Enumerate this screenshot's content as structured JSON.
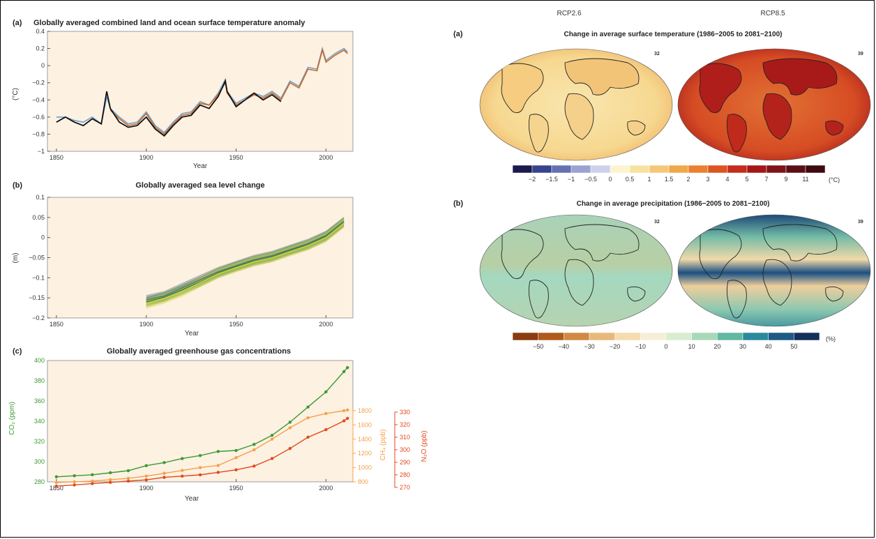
{
  "colors": {
    "plot_bg": "#fdf1e2",
    "obs_black": "#111111",
    "obs_orange": "#c8682a",
    "obs_blue": "#6ea0c8",
    "co2": "#3a9a34",
    "ch4": "#f5a04a",
    "n2o": "#e04a1c",
    "sea_grey": "#5f6f7a",
    "sea_green": "#2e8a3a",
    "sea_yellow": "#d6d23a"
  },
  "left": {
    "a_label": "(a)",
    "b_label": "(b)",
    "c_label": "(c)"
  },
  "right": {
    "rcp26": "RCP2.6",
    "rcp85": "RCP8.5",
    "a_label": "(a)",
    "b_label": "(b)",
    "temp_title": "Change in average surface temperature (1986−2005 to 2081−2100)",
    "precip_title": "Change in average precipitation (1986−2005 to 2081−2100)",
    "temp_model_count_26": "32",
    "temp_model_count_85": "39",
    "precip_model_count_26": "32",
    "precip_model_count_85": "39",
    "temp_unit": "(°C)",
    "precip_unit": "(%)",
    "temp_scale_labels": [
      "−2",
      "−1.5",
      "−1",
      "−0.5",
      "0",
      "0.5",
      "1",
      "1.5",
      "2",
      "3",
      "4",
      "5",
      "7",
      "9",
      "11"
    ],
    "temp_scale_colors": [
      "#1b1a4d",
      "#36448e",
      "#6670b3",
      "#9aa2d2",
      "#cdd1ea",
      "#fbf4cf",
      "#f7e2a0",
      "#f4c878",
      "#f0a848",
      "#ea8030",
      "#dc5422",
      "#c42c1c",
      "#a31818",
      "#7e1418",
      "#5c0e16",
      "#3e0a10"
    ],
    "precip_scale_labels": [
      "−50",
      "−40",
      "−30",
      "−20",
      "−10",
      "0",
      "10",
      "20",
      "30",
      "40",
      "50"
    ],
    "precip_scale_colors": [
      "#8a3c10",
      "#b05a1e",
      "#d08a44",
      "#e8b87a",
      "#f4dcae",
      "#f6eed6",
      "#d8ecd0",
      "#a8d8b8",
      "#62b8a0",
      "#2a8a9c",
      "#1e5a86",
      "#13305a"
    ]
  },
  "chart_data": [
    {
      "type": "line",
      "title": "Globally averaged combined land and ocean surface temperature anomaly",
      "xlabel": "Year",
      "ylabel": "(°C)",
      "xlim": [
        1845,
        2015
      ],
      "ylim": [
        -1,
        0.4
      ],
      "xticks": [
        1850,
        1900,
        1950,
        2000
      ],
      "yticks": [
        -1,
        -0.8,
        -0.6,
        -0.4,
        -0.2,
        0,
        0.2,
        0.4
      ],
      "grid": false,
      "x": [
        1850,
        1855,
        1860,
        1865,
        1870,
        1875,
        1878,
        1880,
        1885,
        1890,
        1895,
        1900,
        1905,
        1910,
        1915,
        1920,
        1925,
        1930,
        1935,
        1940,
        1944,
        1945,
        1950,
        1955,
        1960,
        1965,
        1970,
        1975,
        1980,
        1985,
        1990,
        1995,
        1998,
        2000,
        2005,
        2010,
        2012
      ],
      "series": [
        {
          "values": [
            -0.66,
            -0.6,
            -0.66,
            -0.7,
            -0.62,
            -0.68,
            -0.3,
            -0.5,
            -0.66,
            -0.72,
            -0.7,
            -0.6,
            -0.74,
            -0.82,
            -0.7,
            -0.6,
            -0.58,
            -0.46,
            -0.5,
            -0.36,
            -0.18,
            -0.3,
            -0.48,
            -0.4,
            -0.32,
            -0.4,
            -0.34,
            -0.42,
            -0.22,
            -0.28,
            -0.04,
            -0.08,
            0.2,
            0.02,
            0.12,
            0.2,
            0.16
          ]
        },
        {
          "values": [
            -0.62,
            -0.62,
            -0.66,
            -0.68,
            -0.6,
            -0.7,
            -0.4,
            -0.52,
            -0.62,
            -0.7,
            -0.68,
            -0.56,
            -0.72,
            -0.8,
            -0.68,
            -0.58,
            -0.56,
            -0.44,
            -0.46,
            -0.34,
            -0.2,
            -0.32,
            -0.46,
            -0.4,
            -0.34,
            -0.38,
            -0.32,
            -0.4,
            -0.2,
            -0.26,
            -0.04,
            -0.06,
            0.18,
            0.04,
            0.12,
            0.18,
            0.14
          ]
        },
        {
          "values": [
            -0.6,
            -0.6,
            -0.64,
            -0.66,
            -0.6,
            -0.68,
            -0.36,
            -0.5,
            -0.6,
            -0.68,
            -0.66,
            -0.54,
            -0.7,
            -0.78,
            -0.66,
            -0.56,
            -0.54,
            -0.42,
            -0.46,
            -0.32,
            -0.16,
            -0.3,
            -0.44,
            -0.38,
            -0.32,
            -0.36,
            -0.3,
            -0.38,
            -0.18,
            -0.24,
            -0.02,
            -0.04,
            0.2,
            0.06,
            0.14,
            0.2,
            0.16
          ]
        }
      ]
    },
    {
      "type": "area",
      "title": "Globally averaged sea level change",
      "xlabel": "Year",
      "ylabel": "(m)",
      "xlim": [
        1845,
        2015
      ],
      "ylim": [
        -0.2,
        0.1
      ],
      "xticks": [
        1850,
        1900,
        1950,
        2000
      ],
      "yticks": [
        -0.2,
        -0.15,
        -0.1,
        -0.05,
        0,
        0.05,
        0.1
      ],
      "grid": false,
      "x": [
        1900,
        1910,
        1920,
        1930,
        1940,
        1950,
        1960,
        1970,
        1980,
        1990,
        2000,
        2010
      ],
      "series": [
        {
          "values": [
            -0.155,
            -0.145,
            -0.125,
            -0.105,
            -0.085,
            -0.07,
            -0.055,
            -0.045,
            -0.03,
            -0.015,
            0.005,
            0.04
          ]
        },
        {
          "values": [
            -0.16,
            -0.148,
            -0.13,
            -0.11,
            -0.088,
            -0.072,
            -0.058,
            -0.048,
            -0.032,
            -0.018,
            0.003,
            0.038
          ]
        },
        {
          "values": [
            -0.165,
            -0.152,
            -0.135,
            -0.112,
            -0.09,
            -0.075,
            -0.06,
            -0.05,
            -0.035,
            -0.02,
            0.0,
            0.036
          ]
        }
      ]
    },
    {
      "type": "scatter",
      "title": "Globally averaged greenhouse gas concentrations",
      "xlabel": "Year",
      "xlim": [
        1845,
        2015
      ],
      "xticks": [
        1850,
        1900,
        1950,
        2000
      ],
      "grid": false,
      "axes": [
        {
          "label": "CO₂ (ppm)",
          "range": [
            280,
            400
          ],
          "ticks": [
            280,
            300,
            320,
            340,
            360,
            380,
            400
          ]
        },
        {
          "label": "CH₄ (ppb)",
          "range": [
            800,
            1800
          ],
          "ticks": [
            800,
            1000,
            1200,
            1400,
            1600,
            1800
          ]
        },
        {
          "label": "N₂O (ppb)",
          "range": [
            270,
            330
          ],
          "ticks": [
            270,
            280,
            290,
            300,
            310,
            320,
            330
          ]
        }
      ],
      "series": [
        {
          "x": [
            1850,
            1860,
            1870,
            1880,
            1890,
            1900,
            1910,
            1920,
            1930,
            1940,
            1950,
            1960,
            1970,
            1980,
            1990,
            2000,
            2010,
            2012
          ],
          "values": [
            285,
            286,
            287,
            289,
            291,
            296,
            299,
            303,
            306,
            310,
            311,
            317,
            326,
            339,
            354,
            369,
            389,
            393
          ]
        },
        {
          "x": [
            1850,
            1860,
            1870,
            1880,
            1890,
            1900,
            1910,
            1920,
            1930,
            1940,
            1950,
            1960,
            1970,
            1980,
            1990,
            2000,
            2010,
            2012
          ],
          "values": [
            790,
            800,
            810,
            830,
            850,
            880,
            920,
            960,
            1000,
            1030,
            1140,
            1250,
            1400,
            1560,
            1700,
            1760,
            1800,
            1810
          ]
        },
        {
          "x": [
            1850,
            1860,
            1870,
            1880,
            1890,
            1900,
            1910,
            1920,
            1930,
            1940,
            1950,
            1960,
            1970,
            1980,
            1990,
            2000,
            2010,
            2012
          ],
          "values": [
            271,
            272,
            273,
            274,
            275,
            276,
            278,
            279,
            280,
            282,
            284,
            287,
            293,
            301,
            310,
            316,
            323,
            325
          ]
        }
      ]
    }
  ]
}
